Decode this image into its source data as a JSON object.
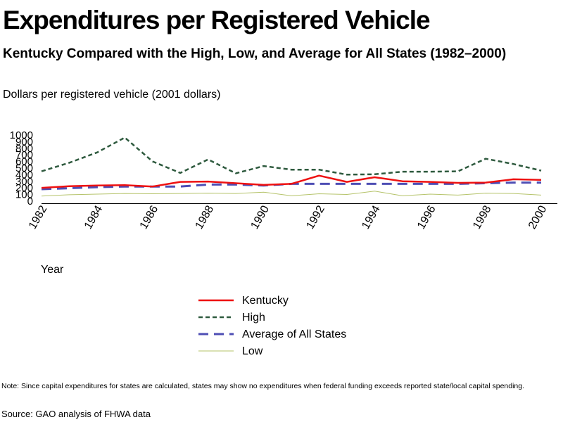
{
  "title": "Expenditures per Registered Vehicle",
  "subtitle": "Kentucky Compared with the High, Low, and Average for All States (1982–2000)",
  "note": "Note: Since capital expenditures for states are calculated, states may show no expenditures when federal funding exceeds reported state/local capital spending.",
  "source": "Source: GAO analysis of FHWA data",
  "colors": {
    "kentucky": "#ee1111",
    "high": "#2e5a3e",
    "average": "#4e4eb4",
    "low": "#b5c36a",
    "axis": "#000000"
  },
  "chart_data": {
    "type": "line",
    "ylabel": "Dollars per registered vehicle (2001 dollars)",
    "xlabel": "Year",
    "x": [
      1982,
      1983,
      1984,
      1985,
      1986,
      1987,
      1988,
      1989,
      1990,
      1991,
      1992,
      1993,
      1994,
      1995,
      1996,
      1997,
      1998,
      1999,
      2000
    ],
    "xticks": [
      "1982",
      "1984",
      "1986",
      "1988",
      "1990",
      "1992",
      "1994",
      "1996",
      "1998",
      "2000"
    ],
    "yticks": [
      "0",
      "100",
      "200",
      "300",
      "400",
      "500",
      "600",
      "700",
      "800",
      "900",
      "1000"
    ],
    "ylim": [
      0,
      1000
    ],
    "grid": false,
    "legend_position": "bottom",
    "series": [
      {
        "name": "Kentucky",
        "style": "solid",
        "values": [
          180,
          205,
          215,
          220,
          200,
          270,
          275,
          250,
          225,
          240,
          365,
          270,
          340,
          280,
          270,
          255,
          260,
          310,
          300
        ]
      },
      {
        "name": "High",
        "style": "dotted",
        "values": [
          430,
          560,
          715,
          940,
          580,
          405,
          610,
          400,
          510,
          455,
          455,
          380,
          385,
          425,
          425,
          430,
          620,
          540,
          440
        ]
      },
      {
        "name": "Average of All States",
        "style": "dashed",
        "values": [
          160,
          175,
          190,
          200,
          200,
          200,
          230,
          230,
          215,
          240,
          240,
          240,
          240,
          240,
          240,
          240,
          250,
          260,
          260
        ]
      },
      {
        "name": "Low",
        "style": "solid-thin",
        "values": [
          55,
          75,
          85,
          95,
          90,
          95,
          100,
          95,
          115,
          60,
          90,
          80,
          130,
          60,
          85,
          70,
          100,
          95,
          70
        ]
      }
    ]
  }
}
